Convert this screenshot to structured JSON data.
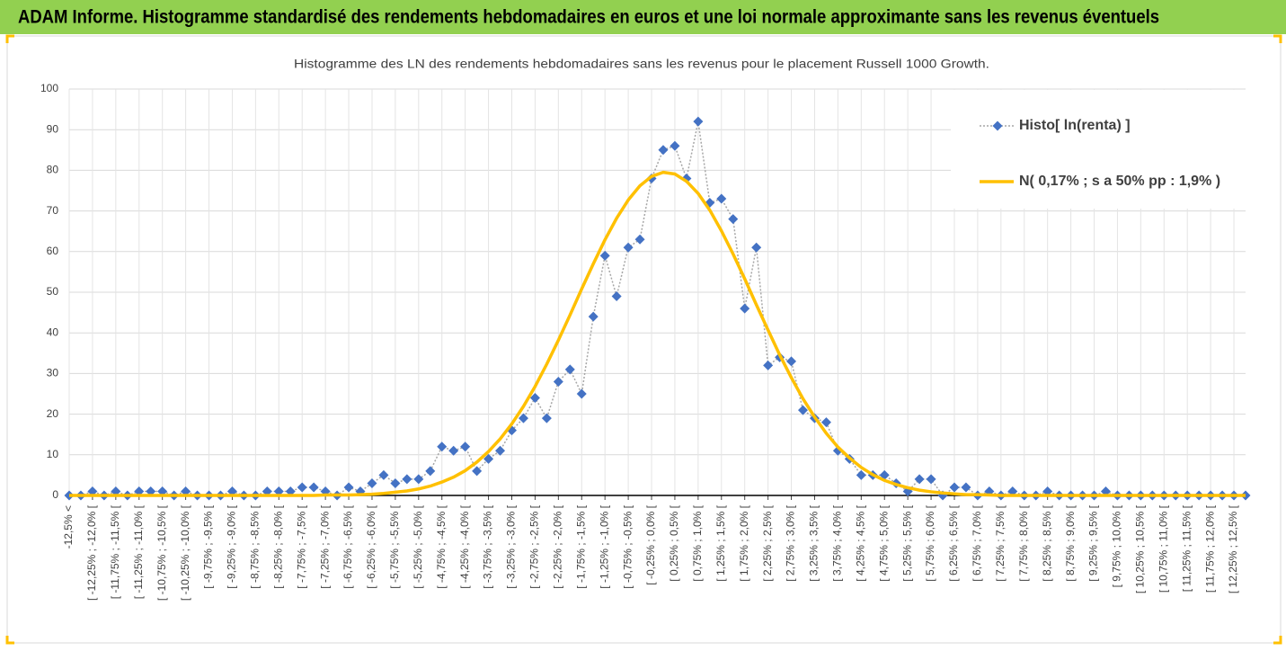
{
  "header": {
    "title": "ADAM Informe. Histogramme standardisé des rendements hebdomadaires en euros et une loi normale approximante sans les revenus éventuels"
  },
  "chart_data": {
    "type": "line",
    "title": "Histogramme des LN des rendements hebdomadaires sans les revenus pour le placement Russell 1000 Growth.",
    "categories": [
      "-12,5% <",
      null,
      "[ -12,25% ; -12,0% [",
      null,
      "[ -11,75% ; -11,5% [",
      null,
      "[ -11,25% ; -11,0% [",
      null,
      "[ -10,75% ; -10,5% [",
      null,
      "[ -10,25% ; -10,0% [",
      null,
      "[ -9,75% ; -9,5% [",
      null,
      "[ -9,25% ; -9,0% [",
      null,
      "[ -8,75% ; -8,5% [",
      null,
      "[ -8,25% ; -8,0% [",
      null,
      "[ -7,75% ; -7,5% [",
      null,
      "[ -7,25% ; -7,0% [",
      null,
      "[ -6,75% ; -6,5% [",
      null,
      "[ -6,25% ; -6,0% [",
      null,
      "[ -5,75% ; -5,5% [",
      null,
      "[ -5,25% ; -5,0% [",
      null,
      "[ -4,75% ; -4,5% [",
      null,
      "[ -4,25% ; -4,0% [",
      null,
      "[ -3,75% ; -3,5% [",
      null,
      "[ -3,25% ; -3,0% [",
      null,
      "[ -2,75% ; -2,5% [",
      null,
      "[ -2,25% ; -2,0% [",
      null,
      "[ -1,75% ; -1,5% [",
      null,
      "[ -1,25% ; -1,0% [",
      null,
      "[ -0,75% ; -0,5% [",
      null,
      "[ -0,25% ; 0,0% [",
      null,
      "[ 0,25% ; 0,5% [",
      null,
      "[ 0,75% ; 1,0% [",
      null,
      "[ 1,25% ; 1,5% [",
      null,
      "[ 1,75% ; 2,0% [",
      null,
      "[ 2,25% ; 2,5% [",
      null,
      "[ 2,75% ; 3,0% [",
      null,
      "[ 3,25% ; 3,5% [",
      null,
      "[ 3,75% ; 4,0% [",
      null,
      "[ 4,25% ; 4,5% [",
      null,
      "[ 4,75% ; 5,0% [",
      null,
      "[ 5,25% ; 5,5% [",
      null,
      "[ 5,75% ; 6,0% [",
      null,
      "[ 6,25% ; 6,5% [",
      null,
      "[ 6,75% ; 7,0% [",
      null,
      "[ 7,25% ; 7,5% [",
      null,
      "[ 7,75% ; 8,0% [",
      null,
      "[ 8,25% ; 8,5% [",
      null,
      "[ 8,75% ; 9,0% [",
      null,
      "[ 9,25% ; 9,5% [",
      null,
      "[ 9,75% ; 10,0% [",
      null,
      "[ 10,25% ; 10,5% [",
      null,
      "[ 10,75% ; 11,0% [",
      null,
      "[ 11,25% ; 11,5% [",
      null,
      "[ 11,75% ; 12,0% [",
      null,
      "[ 12,25% ; 12,5% [",
      null
    ],
    "series": [
      {
        "name": "Histo[ ln(renta) ]",
        "color": "#4472c4",
        "line_color": "#a6a6a6",
        "marker": "diamond",
        "values": [
          0,
          0,
          1,
          0,
          1,
          0,
          1,
          1,
          1,
          0,
          1,
          0,
          0,
          0,
          1,
          0,
          0,
          1,
          1,
          1,
          2,
          2,
          1,
          0,
          2,
          1,
          3,
          5,
          3,
          4,
          4,
          6,
          12,
          11,
          12,
          6,
          9,
          11,
          16,
          19,
          24,
          19,
          28,
          31,
          25,
          44,
          59,
          49,
          61,
          63,
          78,
          85,
          86,
          78,
          92,
          72,
          73,
          68,
          46,
          61,
          32,
          34,
          33,
          21,
          19,
          18,
          11,
          9,
          5,
          5,
          5,
          3,
          1,
          4,
          4,
          0,
          2,
          2,
          0,
          1,
          0,
          1,
          0,
          0,
          1,
          0,
          0,
          0,
          0,
          1,
          0,
          0,
          0,
          0,
          0,
          0,
          0,
          0,
          0,
          0,
          0,
          0
        ]
      },
      {
        "name": "N( 0,17% ; s a 50% pp : 1,9% )",
        "color": "#ffc000",
        "values": [
          0,
          0,
          0,
          0,
          0,
          0,
          0,
          0,
          0,
          0,
          0,
          0,
          0,
          0,
          0,
          0,
          0,
          0,
          0,
          0,
          0,
          0,
          0.1,
          0.1,
          0.1,
          0.2,
          0.3,
          0.5,
          0.8,
          1.1,
          1.6,
          2.3,
          3.3,
          4.5,
          6.1,
          8.2,
          10.8,
          13.9,
          17.6,
          21.9,
          26.8,
          32.3,
          38.2,
          44.4,
          50.8,
          57,
          62.9,
          68.2,
          72.7,
          76.2,
          78.5,
          79.5,
          79.1,
          77.3,
          74.3,
          70.2,
          65.1,
          59.4,
          53.3,
          46.9,
          40.7,
          34.6,
          29,
          23.8,
          19.3,
          15.3,
          11.9,
          9.2,
          6.9,
          5.1,
          3.7,
          2.7,
          1.9,
          1.3,
          0.9,
          0.6,
          0.4,
          0.2,
          0.2,
          0.1,
          0,
          0,
          0,
          0,
          0,
          0,
          0,
          0,
          0,
          0,
          0,
          0,
          0,
          0,
          0,
          0,
          0,
          0,
          0,
          0,
          0,
          0
        ]
      }
    ],
    "ylim": [
      0,
      100
    ],
    "yticks": [
      0,
      10,
      20,
      30,
      40,
      50,
      60,
      70,
      80,
      90,
      100
    ],
    "grid": true,
    "legend": "upper right"
  }
}
